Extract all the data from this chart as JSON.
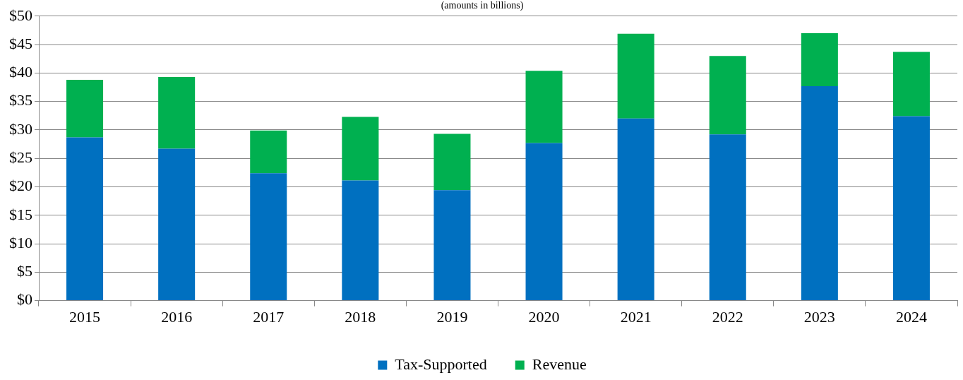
{
  "chart_data": {
    "type": "bar",
    "subtitle": "(amounts in billions)",
    "stacked": true,
    "categories": [
      "2015",
      "2016",
      "2017",
      "2018",
      "2019",
      "2020",
      "2021",
      "2022",
      "2023",
      "2024"
    ],
    "series": [
      {
        "name": "Tax-Supported",
        "color": "#0070c0",
        "values": [
          28.7,
          26.7,
          22.4,
          21.1,
          19.4,
          27.7,
          32.0,
          29.2,
          37.7,
          32.4
        ]
      },
      {
        "name": "Revenue",
        "color": "#00b050",
        "values": [
          10.1,
          12.6,
          7.5,
          11.2,
          9.9,
          12.7,
          14.9,
          13.8,
          9.3,
          11.3
        ]
      }
    ],
    "ylim": [
      0,
      50
    ],
    "yticks": [
      {
        "value": 0,
        "label": "$0"
      },
      {
        "value": 5,
        "label": "$5"
      },
      {
        "value": 10,
        "label": "$10"
      },
      {
        "value": 15,
        "label": "$15"
      },
      {
        "value": 20,
        "label": "$20"
      },
      {
        "value": 25,
        "label": "$25"
      },
      {
        "value": 30,
        "label": "$30"
      },
      {
        "value": 35,
        "label": "$35"
      },
      {
        "value": 40,
        "label": "$40"
      },
      {
        "value": 45,
        "label": "$45"
      },
      {
        "value": 50,
        "label": "$50"
      }
    ],
    "grid": "y",
    "legend": "bottom"
  }
}
